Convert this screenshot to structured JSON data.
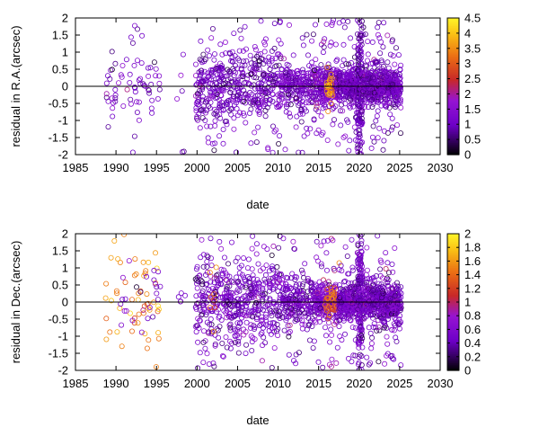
{
  "chart_data": [
    {
      "type": "scatter",
      "xlabel": "date",
      "ylabel": "residual in R.A.(arcsec)",
      "xlim": [
        1985,
        2030
      ],
      "ylim": [
        -2,
        2
      ],
      "xticks": [
        1985,
        1990,
        1995,
        2000,
        2005,
        2010,
        2015,
        2020,
        2025,
        2030
      ],
      "yticks": [
        -2,
        -1.5,
        -1,
        -0.5,
        0,
        0.5,
        1,
        1.5,
        2
      ],
      "xtick_labels": [
        "1985",
        "1990",
        "1995",
        "2000",
        "2005",
        "2010",
        "2015",
        "2020",
        "2025",
        "2030"
      ],
      "ytick_labels": [
        "-2",
        "-1.5",
        "-1",
        "-0.5",
        "0",
        "0.5",
        "1",
        "1.5",
        "2"
      ],
      "zero_line": true,
      "grid": false,
      "marker": "open-circle",
      "colorbar": {
        "range": [
          0,
          4.5
        ],
        "ticks": [
          0,
          0.5,
          1,
          1.5,
          2,
          2.5,
          3,
          3.5,
          4,
          4.5
        ],
        "labels": [
          "0",
          "0.5",
          "1",
          "1.5",
          "2",
          "2.5",
          "3",
          "3.5",
          "4",
          "4.5"
        ],
        "palette": "black-purple-red-orange-yellow"
      },
      "density_clusters": [
        {
          "x_range": [
            1988.7,
            1995.5
          ],
          "count": 70,
          "y_spread": 0.6,
          "color_value": 1.1
        },
        {
          "x_range": [
            1997.5,
            1998.6
          ],
          "count": 6,
          "y_spread": 0.3,
          "color_value": 1.1
        },
        {
          "x_range": [
            1999.8,
            2010.5
          ],
          "count": 500,
          "y_spread": 0.55,
          "color_value": 1.1
        },
        {
          "x_range": [
            2010.5,
            2014.5
          ],
          "count": 220,
          "y_spread": 0.35,
          "color_value": 1.1
        },
        {
          "x_range": [
            2014.5,
            2017.5
          ],
          "count": 260,
          "y_spread": 0.3,
          "color_value": 1.25
        },
        {
          "x_range": [
            2016.0,
            2016.8
          ],
          "count": 30,
          "y_spread": 0.25,
          "color_value": 3.6
        },
        {
          "x_range": [
            2017.5,
            2019.8
          ],
          "count": 260,
          "y_spread": 0.25,
          "color_value": 1.1
        },
        {
          "x_range": [
            2019.8,
            2020.4
          ],
          "count": 180,
          "y_spread": 0.9,
          "color_value": 1.0
        },
        {
          "x_range": [
            2020.4,
            2025.2
          ],
          "count": 520,
          "y_spread": 0.3,
          "color_value": 1.1
        }
      ]
    },
    {
      "type": "scatter",
      "xlabel": "date",
      "ylabel": "residual in Dec.(arcsec)",
      "xlim": [
        1985,
        2030
      ],
      "ylim": [
        -2,
        2
      ],
      "xticks": [
        1985,
        1990,
        1995,
        2000,
        2005,
        2010,
        2015,
        2020,
        2025,
        2030
      ],
      "yticks": [
        -2,
        -1.5,
        -1,
        -0.5,
        0,
        0.5,
        1,
        1.5,
        2
      ],
      "xtick_labels": [
        "1985",
        "1990",
        "1995",
        "2000",
        "2005",
        "2010",
        "2015",
        "2020",
        "2025",
        "2030"
      ],
      "ytick_labels": [
        "-2",
        "-1.5",
        "-1",
        "-0.5",
        "0",
        "0.5",
        "1",
        "1.5",
        "2"
      ],
      "zero_line": true,
      "grid": false,
      "marker": "open-circle",
      "colorbar": {
        "range": [
          0,
          2
        ],
        "ticks": [
          0,
          0.2,
          0.4,
          0.6,
          0.8,
          1,
          1.2,
          1.4,
          1.6,
          1.8,
          2
        ],
        "labels": [
          "0",
          "0.2",
          "0.4",
          "0.6",
          "0.8",
          "1",
          "1.2",
          "1.4",
          "1.6",
          "1.8",
          "2"
        ],
        "palette": "black-purple-red-orange-yellow"
      },
      "density_clusters": [
        {
          "x_range": [
            1988.7,
            1995.5
          ],
          "count": 55,
          "y_spread": 0.75,
          "color_value": 1.55
        },
        {
          "x_range": [
            1990.5,
            1995.5
          ],
          "count": 25,
          "y_spread": 0.4,
          "color_value": 0.55
        },
        {
          "x_range": [
            1997.5,
            1998.6
          ],
          "count": 5,
          "y_spread": 0.2,
          "color_value": 0.5
        },
        {
          "x_range": [
            1999.8,
            2010.5
          ],
          "count": 500,
          "y_spread": 0.6,
          "color_value": 0.5
        },
        {
          "x_range": [
            2001.5,
            2002.5
          ],
          "count": 8,
          "y_spread": 0.4,
          "color_value": 1.4
        },
        {
          "x_range": [
            2010.5,
            2014.5
          ],
          "count": 220,
          "y_spread": 0.35,
          "color_value": 0.5
        },
        {
          "x_range": [
            2014.5,
            2017.5
          ],
          "count": 260,
          "y_spread": 0.3,
          "color_value": 0.6
        },
        {
          "x_range": [
            2015.8,
            2017.6
          ],
          "count": 40,
          "y_spread": 0.2,
          "color_value": 1.4
        },
        {
          "x_range": [
            2017.5,
            2019.8
          ],
          "count": 260,
          "y_spread": 0.25,
          "color_value": 0.5
        },
        {
          "x_range": [
            2019.8,
            2020.4
          ],
          "count": 180,
          "y_spread": 0.9,
          "color_value": 0.45
        },
        {
          "x_range": [
            2020.4,
            2025.2
          ],
          "count": 520,
          "y_spread": 0.3,
          "color_value": 0.5
        }
      ]
    }
  ]
}
